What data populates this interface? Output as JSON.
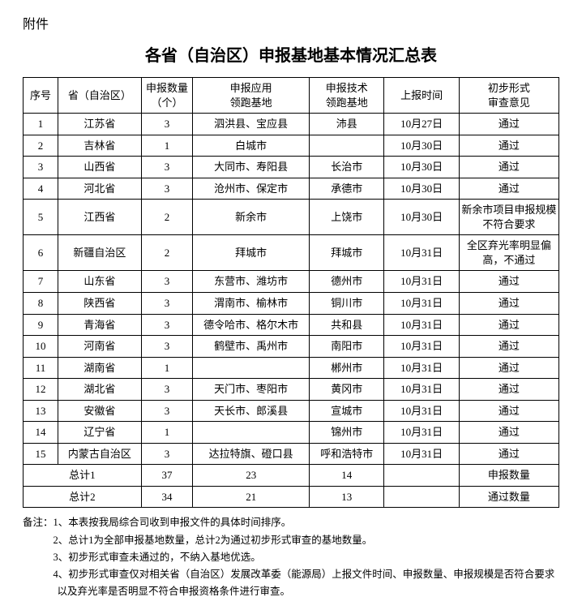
{
  "attachment_label": "附件",
  "title": "各省（自治区）申报基地基本情况汇总表",
  "headers": {
    "seq": "序号",
    "province": "省（自治区）",
    "count": "申报数量\n（个）",
    "app_base": "申报应用\n领跑基地",
    "tech_base": "申报技术\n领跑基地",
    "report_time": "上报时间",
    "review": "初步形式\n审查意见"
  },
  "rows": [
    {
      "seq": "1",
      "province": "江苏省",
      "count": "3",
      "app_base": "泗洪县、宝应县",
      "tech_base": "沛县",
      "report_time": "10月27日",
      "review": "通过"
    },
    {
      "seq": "2",
      "province": "吉林省",
      "count": "1",
      "app_base": "白城市",
      "tech_base": "",
      "report_time": "10月30日",
      "review": "通过"
    },
    {
      "seq": "3",
      "province": "山西省",
      "count": "3",
      "app_base": "大同市、寿阳县",
      "tech_base": "长治市",
      "report_time": "10月30日",
      "review": "通过"
    },
    {
      "seq": "4",
      "province": "河北省",
      "count": "3",
      "app_base": "沧州市、保定市",
      "tech_base": "承德市",
      "report_time": "10月30日",
      "review": "通过"
    },
    {
      "seq": "5",
      "province": "江西省",
      "count": "2",
      "app_base": "新余市",
      "tech_base": "上饶市",
      "report_time": "10月30日",
      "review": "新余市项目申报规模不符合要求"
    },
    {
      "seq": "6",
      "province": "新疆自治区",
      "count": "2",
      "app_base": "拜城市",
      "tech_base": "拜城市",
      "report_time": "10月31日",
      "review": "全区弃光率明显偏高，不通过"
    },
    {
      "seq": "7",
      "province": "山东省",
      "count": "3",
      "app_base": "东营市、潍坊市",
      "tech_base": "德州市",
      "report_time": "10月31日",
      "review": "通过"
    },
    {
      "seq": "8",
      "province": "陕西省",
      "count": "3",
      "app_base": "渭南市、榆林市",
      "tech_base": "铜川市",
      "report_time": "10月31日",
      "review": "通过"
    },
    {
      "seq": "9",
      "province": "青海省",
      "count": "3",
      "app_base": "德令哈市、格尔木市",
      "tech_base": "共和县",
      "report_time": "10月31日",
      "review": "通过"
    },
    {
      "seq": "10",
      "province": "河南省",
      "count": "3",
      "app_base": "鹤壁市、禹州市",
      "tech_base": "南阳市",
      "report_time": "10月31日",
      "review": "通过"
    },
    {
      "seq": "11",
      "province": "湖南省",
      "count": "1",
      "app_base": "",
      "tech_base": "郴州市",
      "report_time": "10月31日",
      "review": "通过"
    },
    {
      "seq": "12",
      "province": "湖北省",
      "count": "3",
      "app_base": "天门市、枣阳市",
      "tech_base": "黄冈市",
      "report_time": "10月31日",
      "review": "通过"
    },
    {
      "seq": "13",
      "province": "安徽省",
      "count": "3",
      "app_base": "天长市、郎溪县",
      "tech_base": "宣城市",
      "report_time": "10月31日",
      "review": "通过"
    },
    {
      "seq": "14",
      "province": "辽宁省",
      "count": "1",
      "app_base": "",
      "tech_base": "锦州市",
      "report_time": "10月31日",
      "review": "通过"
    },
    {
      "seq": "15",
      "province": "内蒙古自治区",
      "count": "3",
      "app_base": "达拉特旗、磴口县",
      "tech_base": "呼和浩特市",
      "report_time": "10月31日",
      "review": "通过"
    }
  ],
  "totals": [
    {
      "label": "总计1",
      "count": "37",
      "app_base": "23",
      "tech_base": "14",
      "report_time": "",
      "review": "申报数量"
    },
    {
      "label": "总计2",
      "count": "34",
      "app_base": "21",
      "tech_base": "13",
      "report_time": "",
      "review": "通过数量"
    }
  ],
  "notes_label": "备注：",
  "notes": [
    "1、本表按我局综合司收到申报文件的具体时间排序。",
    "2、总计1为全部申报基地数量，总计2为通过初步形式审查的基地数量。",
    "3、初步形式审查未通过的，不纳入基地优选。",
    "4、初步形式审查仅对相关省（自治区）发展改革委（能源局）上报文件时间、申报数量、申报规模是否符合要求以及弃光率是否明显不符合申报资格条件进行审查。"
  ]
}
